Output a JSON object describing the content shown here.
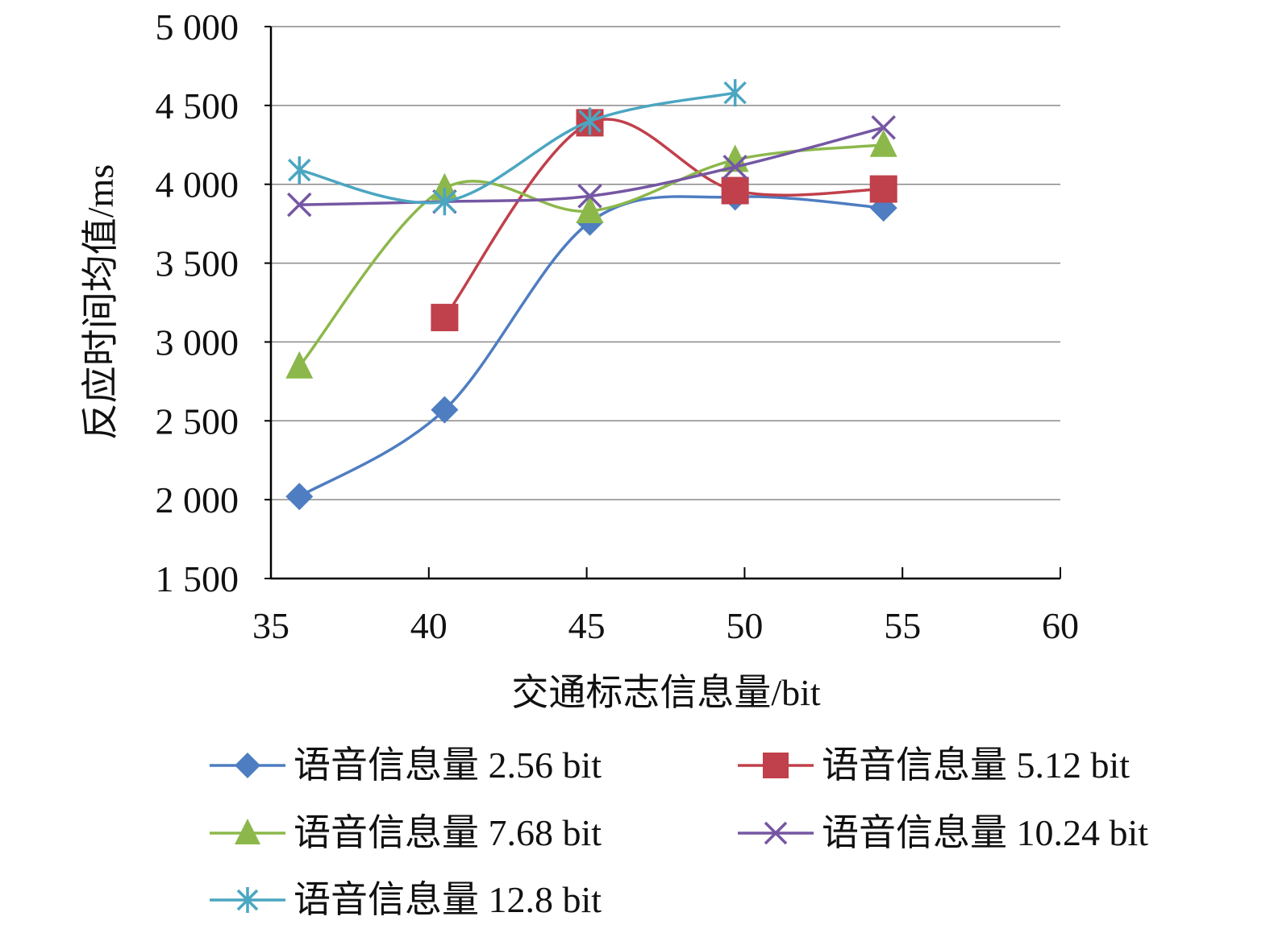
{
  "chart_data": {
    "type": "line",
    "title": "",
    "xlabel": "交通标志信息量/bit",
    "ylabel": "反应时间均值/ms",
    "xlim": [
      35,
      60
    ],
    "ylim": [
      1500,
      5000
    ],
    "xticks": [
      35,
      40,
      45,
      50,
      55,
      60
    ],
    "xtick_labels": [
      "35",
      "40",
      "45",
      "50",
      "55",
      "60"
    ],
    "yticks": [
      1500,
      2000,
      2500,
      3000,
      3500,
      4000,
      4500,
      5000
    ],
    "ytick_labels": [
      "1 500",
      "2 000",
      "2 500",
      "3 000",
      "3 500",
      "4 000",
      "4 500",
      "5 000"
    ],
    "grid": true,
    "legend_position": "bottom",
    "series": [
      {
        "name": "语音信息量 2.56 bit",
        "color": "#4E7DC1",
        "marker": "diamond",
        "x": [
          35.9,
          40.5,
          45.1,
          49.7,
          54.4
        ],
        "y": [
          2020,
          2570,
          3760,
          3920,
          3850
        ]
      },
      {
        "name": "语音信息量 5.12 bit",
        "color": "#C0404B",
        "marker": "square",
        "x": [
          40.5,
          45.1,
          49.7,
          54.4
        ],
        "y": [
          3155,
          4390,
          3960,
          3970
        ]
      },
      {
        "name": "语音信息量 7.68 bit",
        "color": "#8CB84B",
        "marker": "triangle",
        "x": [
          35.9,
          40.5,
          45.1,
          49.7,
          54.4
        ],
        "y": [
          2845,
          3975,
          3830,
          4155,
          4250
        ]
      },
      {
        "name": "语音信息量 10.24 bit",
        "color": "#7557A3",
        "marker": "x",
        "x": [
          35.9,
          40.5,
          45.1,
          49.7,
          54.4
        ],
        "y": [
          3870,
          3890,
          3925,
          4110,
          4360
        ]
      },
      {
        "name": "语音信息量 12.8 bit",
        "color": "#4BA6C1",
        "marker": "asterisk",
        "x": [
          35.9,
          40.5,
          45.1,
          49.7
        ],
        "y": [
          4090,
          3890,
          4400,
          4580
        ]
      }
    ]
  }
}
